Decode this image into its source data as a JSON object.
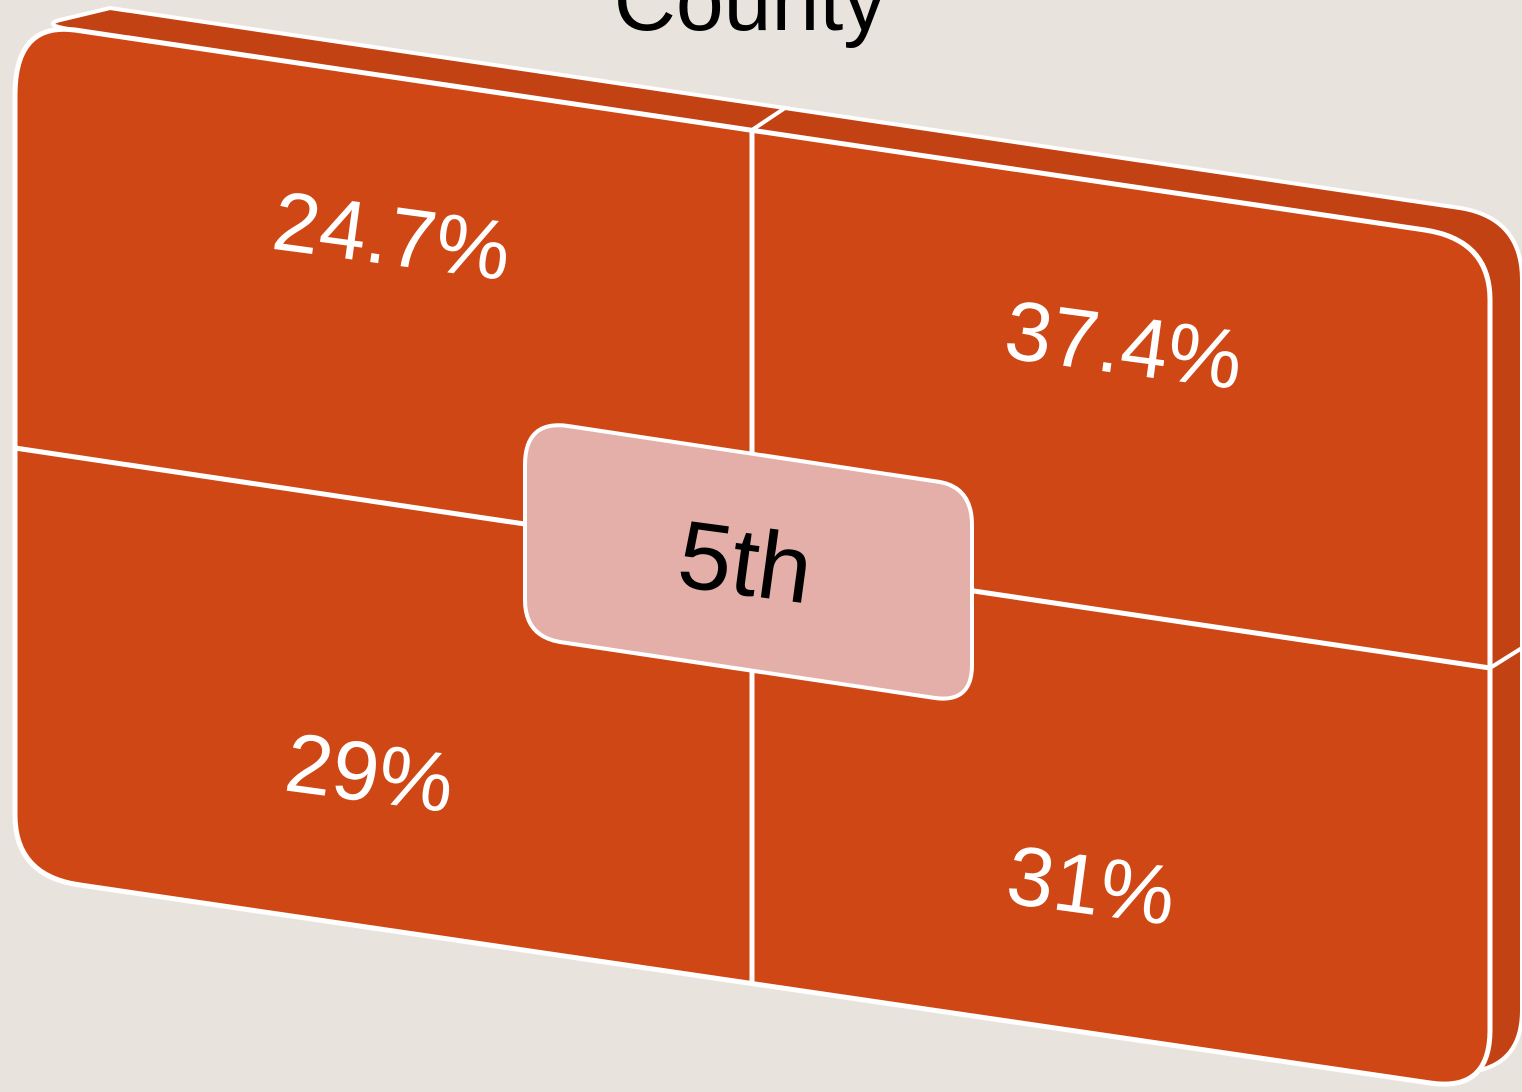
{
  "title": "County",
  "center": {
    "label": "5th"
  },
  "quadrants": [
    {
      "label": "24.7%"
    },
    {
      "label": "37.4%"
    },
    {
      "label": "29%"
    },
    {
      "label": "31%"
    }
  ]
}
